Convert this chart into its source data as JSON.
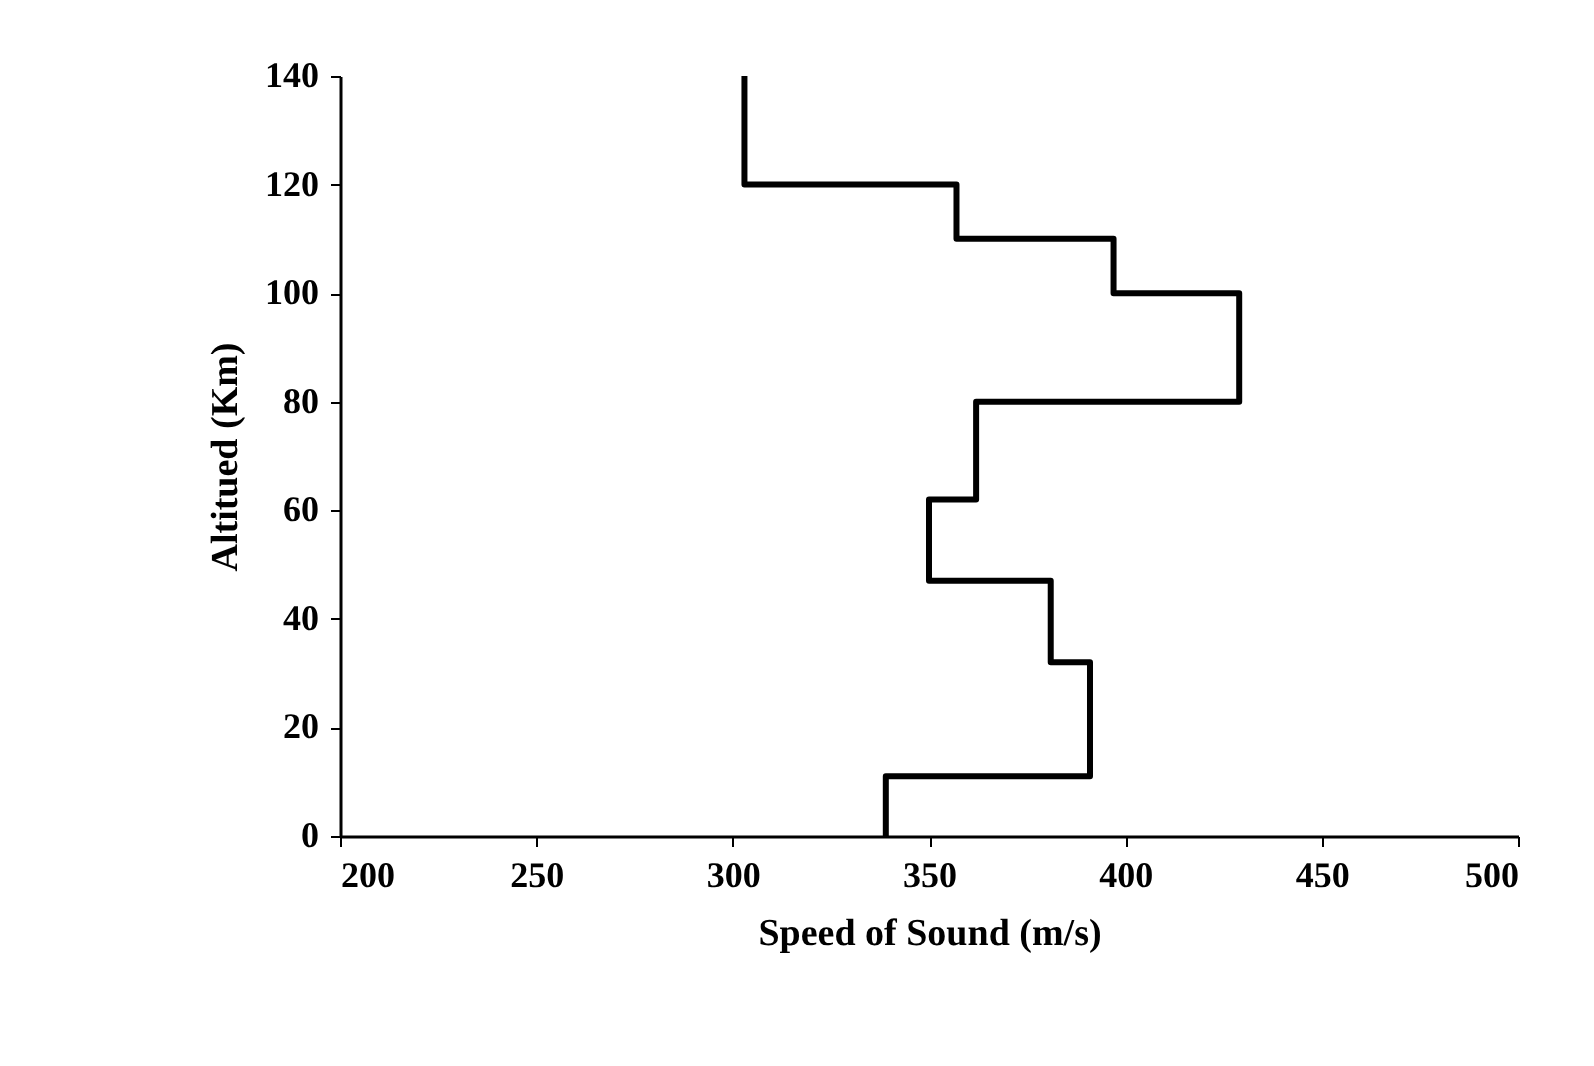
{
  "chart_data": {
    "type": "line",
    "xlabel": "Speed of Sound (m/s)",
    "ylabel": "Altitued (Km)",
    "x": [
      339,
      339,
      391,
      391,
      381,
      381,
      350,
      350,
      362,
      362,
      429,
      429,
      397,
      397,
      357,
      357,
      303,
      303
    ],
    "series": [
      {
        "color": "#000000",
        "values": [
          0,
          11,
          11,
          32,
          32,
          47,
          47,
          62,
          62,
          80,
          80,
          100,
          100,
          110,
          110,
          120,
          120,
          140
        ]
      }
    ],
    "xlim": [
      200,
      500
    ],
    "xticks": [
      200,
      250,
      300,
      350,
      400,
      450,
      500
    ],
    "ylim": [
      0,
      140
    ],
    "yticks": [
      0,
      20,
      40,
      60,
      80,
      100,
      120,
      140
    ],
    "grid": false,
    "marker": "none",
    "line_style": "solid"
  }
}
